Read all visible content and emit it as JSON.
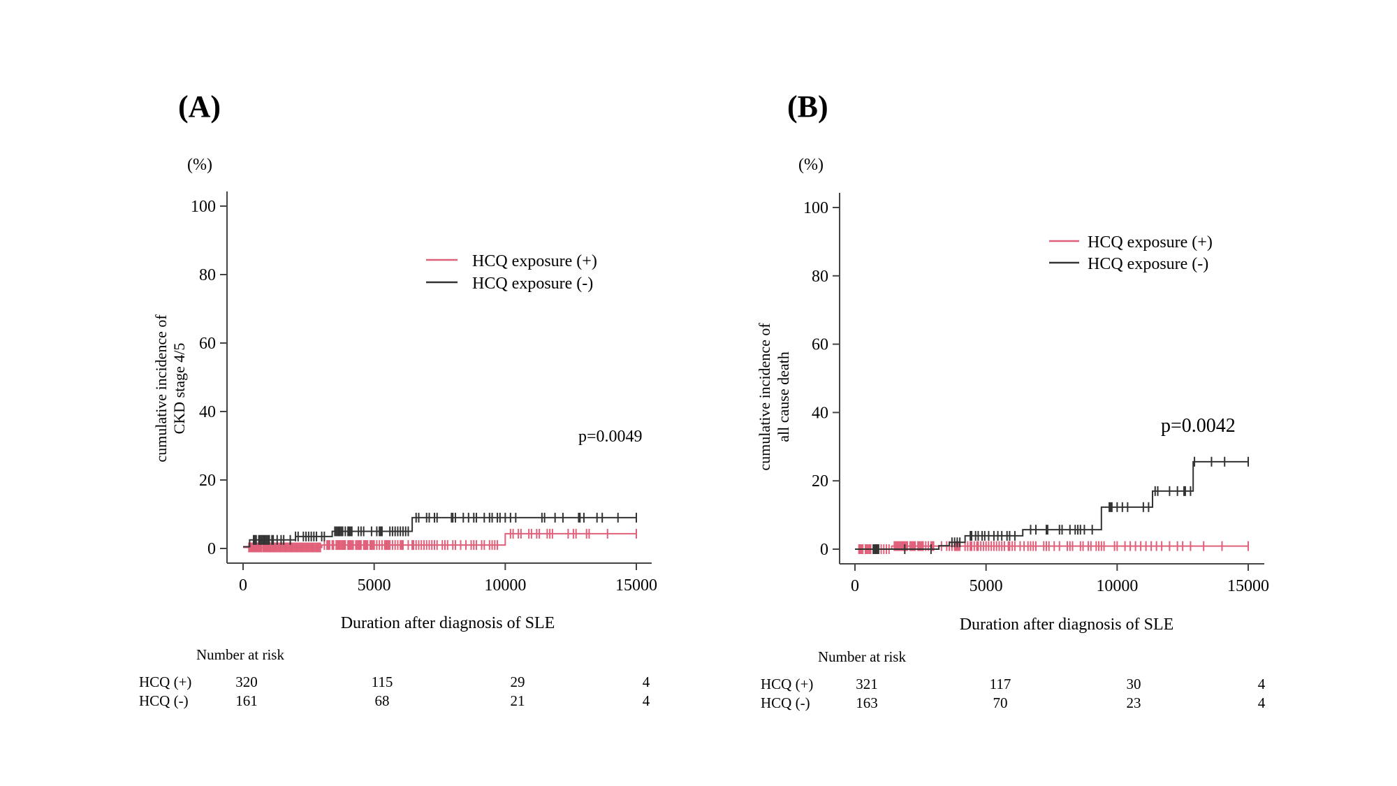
{
  "colors": {
    "hcq_pos": "#e0607a",
    "hcq_neg": "#333333",
    "axis": "#444444"
  },
  "chart_data": [
    {
      "type": "line",
      "panel_label": "(A)",
      "unit_label": "(%)",
      "xlabel": "Duration after diagnosis of SLE",
      "ylabel_lines": [
        "cumulative incidence of",
        "CKD stage 4/5"
      ],
      "xlim": [
        0,
        15000
      ],
      "ylim": [
        0,
        100
      ],
      "xticks": [
        0,
        5000,
        10000,
        15000
      ],
      "xtick_labels": [
        "0",
        "5000",
        "10000",
        "15000"
      ],
      "yticks": [
        0,
        20,
        40,
        60,
        80,
        100
      ],
      "ytick_labels": [
        "0",
        "20",
        "40",
        "60",
        "80",
        "100"
      ],
      "legend_position": "top-right",
      "annotation": "p=0.0049",
      "series": [
        {
          "name": "HCQ exposure (+)",
          "color_key": "hcq_pos",
          "steps": [
            [
              0,
              0.3
            ],
            [
              3000,
              1.0
            ],
            [
              10000,
              4.3
            ],
            [
              15000,
              4.3
            ]
          ],
          "censor_times": [
            220,
            260,
            300,
            340,
            380,
            420,
            460,
            500,
            540,
            580,
            620,
            660,
            700,
            760,
            800,
            840,
            880,
            920,
            960,
            1000,
            1050,
            1100,
            1150,
            1200,
            1250,
            1300,
            1350,
            1400,
            1450,
            1500,
            1550,
            1600,
            1650,
            1700,
            1750,
            1800,
            1850,
            1900,
            1950,
            2000,
            2050,
            2100,
            2150,
            2200,
            2250,
            2300,
            2350,
            2400,
            2450,
            2500,
            2550,
            2600,
            2650,
            2700,
            2750,
            2800,
            2850,
            2900,
            2950,
            3100,
            3200,
            3250,
            3300,
            3400,
            3450,
            3550,
            3600,
            3650,
            3700,
            3750,
            3800,
            3850,
            3900,
            4000,
            4050,
            4100,
            4150,
            4200,
            4300,
            4350,
            4400,
            4450,
            4500,
            4600,
            4650,
            4700,
            4750,
            4850,
            4900,
            4950,
            5000,
            5100,
            5200,
            5300,
            5400,
            5450,
            5500,
            5550,
            5600,
            5700,
            5800,
            5900,
            6000,
            6050,
            6100,
            6300,
            6450,
            6500,
            6600,
            6700,
            6800,
            6900,
            7000,
            7100,
            7200,
            7300,
            7400,
            7600,
            7700,
            7800,
            8000,
            8100,
            8300,
            8500,
            8700,
            8800,
            8900,
            9100,
            9200,
            9400,
            9500,
            9600,
            9700,
            10200,
            10300,
            10500,
            10600,
            10900,
            11000,
            11200,
            11300,
            11600,
            11700,
            11800,
            12400,
            12600,
            12700,
            13100,
            13200,
            13900,
            15000
          ]
        },
        {
          "name": "HCQ exposure (-)",
          "color_key": "hcq_neg",
          "steps": [
            [
              0,
              0.5
            ],
            [
              250,
              2.5
            ],
            [
              2000,
              3.5
            ],
            [
              3400,
              5.0
            ],
            [
              6450,
              9.0
            ],
            [
              15000,
              9.0
            ]
          ],
          "censor_times": [
            400,
            450,
            500,
            600,
            650,
            700,
            750,
            800,
            850,
            900,
            950,
            1000,
            1100,
            1150,
            1300,
            1450,
            1550,
            1800,
            2000,
            2100,
            2300,
            2400,
            2500,
            2600,
            2700,
            2800,
            3000,
            3100,
            3500,
            3550,
            3600,
            3650,
            3700,
            3750,
            3800,
            3900,
            4000,
            4050,
            4100,
            4150,
            4400,
            4500,
            4600,
            4900,
            5100,
            5200,
            5250,
            5300,
            5600,
            5700,
            5800,
            5900,
            6000,
            6100,
            6200,
            6300,
            6600,
            6700,
            7000,
            7100,
            7300,
            7400,
            7950,
            8000,
            8100,
            8400,
            8600,
            8800,
            8900,
            9200,
            9400,
            9500,
            9700,
            9800,
            10000,
            10200,
            10400,
            11400,
            11500,
            11900,
            12200,
            12800,
            12850,
            13000,
            13500,
            13700,
            14300,
            15000
          ]
        }
      ],
      "risk_table": {
        "title": "Number at risk",
        "rows": [
          {
            "label": "HCQ (+)",
            "values": [
              "320",
              "115",
              "29",
              "4"
            ]
          },
          {
            "label": "HCQ (-)",
            "values": [
              "161",
              "68",
              "21",
              "4"
            ]
          }
        ]
      }
    },
    {
      "type": "line",
      "panel_label": "(B)",
      "unit_label": "(%)",
      "xlabel": "Duration after diagnosis of SLE",
      "ylabel_lines": [
        "cumulative incidence of",
        "all cause death"
      ],
      "xlim": [
        0,
        15000
      ],
      "ylim": [
        0,
        100
      ],
      "xticks": [
        0,
        5000,
        10000,
        15000
      ],
      "xtick_labels": [
        "0",
        "5000",
        "10000",
        "15000"
      ],
      "yticks": [
        0,
        20,
        40,
        60,
        80,
        100
      ],
      "ytick_labels": [
        "0",
        "20",
        "40",
        "60",
        "80",
        "100"
      ],
      "legend_position": "top-right",
      "annotation": "p=0.0042",
      "series": [
        {
          "name": "HCQ exposure (+)",
          "color_key": "hcq_pos",
          "steps": [
            [
              0,
              0.0
            ],
            [
              1400,
              0.9
            ],
            [
              15000,
              0.9
            ]
          ],
          "censor_times": [
            150,
            200,
            250,
            300,
            400,
            450,
            500,
            550,
            600,
            700,
            750,
            800,
            850,
            900,
            1000,
            1100,
            1200,
            1300,
            1500,
            1550,
            1600,
            1650,
            1700,
            1750,
            1800,
            1850,
            1900,
            1950,
            2000,
            2100,
            2150,
            2200,
            2250,
            2300,
            2400,
            2450,
            2500,
            2550,
            2600,
            2700,
            2800,
            2900,
            2950,
            3000,
            3300,
            3500,
            3600,
            3700,
            3800,
            3850,
            3900,
            3950,
            4000,
            4200,
            4300,
            4400,
            4450,
            4550,
            4650,
            4700,
            4800,
            4900,
            5000,
            5100,
            5200,
            5300,
            5400,
            5500,
            5600,
            5700,
            5850,
            5900,
            6000,
            6100,
            6300,
            6450,
            6600,
            6700,
            6800,
            6900,
            7200,
            7300,
            7400,
            7600,
            7800,
            8100,
            8200,
            8300,
            8600,
            8700,
            8900,
            9000,
            9200,
            9300,
            9400,
            9500,
            9900,
            10000,
            10300,
            10500,
            10700,
            10900,
            11100,
            11300,
            11500,
            11700,
            12000,
            12300,
            12500,
            12800,
            13300,
            14000,
            15000
          ]
        },
        {
          "name": "HCQ exposure (-)",
          "color_key": "hcq_neg",
          "steps": [
            [
              0,
              0.0
            ],
            [
              3200,
              1.0
            ],
            [
              3600,
              2.0
            ],
            [
              4200,
              3.9
            ],
            [
              6400,
              5.7
            ],
            [
              9400,
              12.3
            ],
            [
              11350,
              17.0
            ],
            [
              12900,
              25.6
            ],
            [
              15000,
              25.6
            ]
          ],
          "censor_times": [
            700,
            750,
            800,
            850,
            900,
            1900,
            2900,
            3700,
            3800,
            3900,
            4000,
            4400,
            4450,
            4600,
            4700,
            4850,
            4950,
            5100,
            5300,
            5450,
            5600,
            5800,
            5900,
            6100,
            6700,
            6900,
            7300,
            7350,
            7800,
            7900,
            8200,
            8400,
            8500,
            8600,
            8750,
            9050,
            9700,
            9750,
            9800,
            10000,
            10200,
            10400,
            11000,
            11200,
            11450,
            11550,
            12000,
            12300,
            12550,
            12600,
            12800,
            12950,
            13600,
            14100,
            15000
          ]
        }
      ],
      "risk_table": {
        "title": "Number at risk",
        "rows": [
          {
            "label": "HCQ (+)",
            "values": [
              "321",
              "117",
              "30",
              "4"
            ]
          },
          {
            "label": "HCQ (-)",
            "values": [
              "163",
              "70",
              "23",
              "4"
            ]
          }
        ]
      }
    }
  ]
}
